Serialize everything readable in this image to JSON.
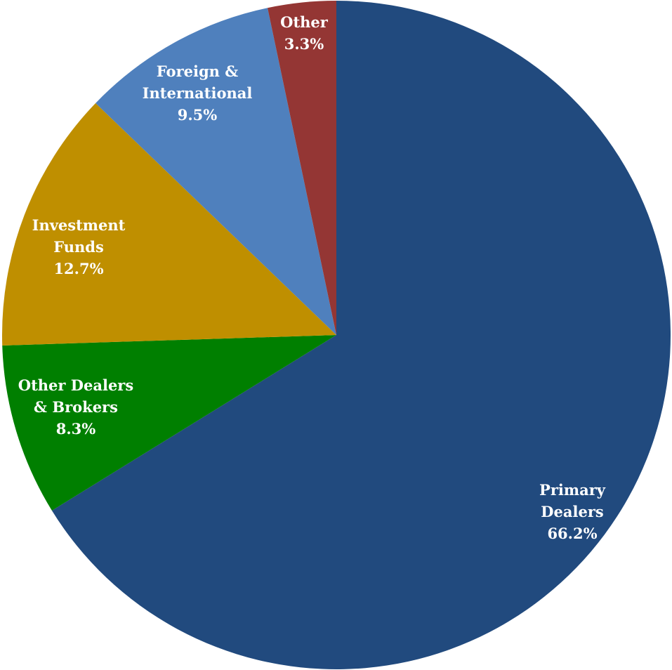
{
  "chart_data": {
    "type": "pie",
    "title": "",
    "start_angle_deg": 0,
    "direction": "clockwise",
    "slices": [
      {
        "name": "Primary Dealers",
        "label_lines": [
          "Primary",
          "Dealers"
        ],
        "value": 66.2,
        "value_label": "66.2%",
        "color": "#214a7e"
      },
      {
        "name": "Other Dealers & Brokers",
        "label_lines": [
          "Other Dealers",
          "& Brokers"
        ],
        "value": 8.3,
        "value_label": "8.3%",
        "color": "#007f00"
      },
      {
        "name": "Investment Funds",
        "label_lines": [
          "Investment",
          "Funds"
        ],
        "value": 12.7,
        "value_label": "12.7%",
        "color": "#bf8f00"
      },
      {
        "name": "Foreign & International",
        "label_lines": [
          "Foreign &",
          "International"
        ],
        "value": 9.5,
        "value_label": "9.5%",
        "color": "#4f80bd"
      },
      {
        "name": "Other",
        "label_lines": [
          "Other"
        ],
        "value": 3.3,
        "value_label": "3.3%",
        "color": "#943634"
      }
    ]
  }
}
